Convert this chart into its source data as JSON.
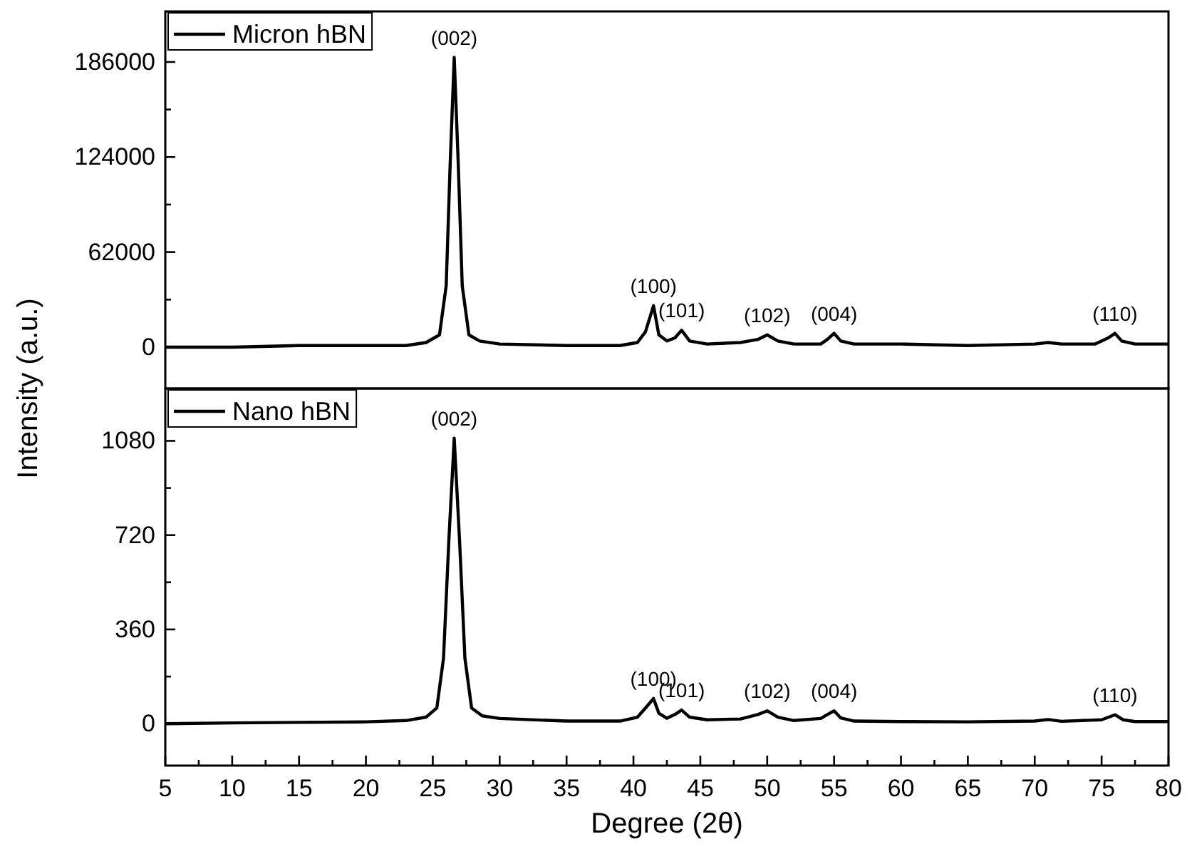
{
  "chart_data": [
    {
      "type": "line",
      "ylabel": "Intensity (a.u.)",
      "xlim": [
        5,
        80
      ],
      "ylim": [
        -27000,
        219000
      ],
      "yticks": [
        0,
        {
          "value": 31000,
          "label": null
        },
        62000,
        {
          "value": 93000,
          "label": null
        },
        124000,
        {
          "value": 155000,
          "label": null
        },
        186000
      ],
      "tick_labels": "y",
      "legend": "top left",
      "grid": false,
      "line_style": "solid",
      "marker": "none",
      "series": [
        {
          "name": "Micron hBN",
          "color": "#000000",
          "x": [
            5,
            10,
            15,
            20,
            23,
            24.5,
            25.5,
            26,
            26.3,
            26.6,
            26.9,
            27.2,
            27.7,
            28.5,
            30,
            35,
            39,
            40.3,
            40.9,
            41.5,
            41.9,
            42.5,
            43.1,
            43.6,
            44.2,
            45.5,
            48,
            49.3,
            50,
            50.8,
            52,
            54,
            54.5,
            55,
            55.5,
            56.5,
            60,
            65,
            70,
            71,
            72,
            74.5,
            75.5,
            76,
            76.5,
            77.5,
            80
          ],
          "values": [
            0,
            0,
            1000,
            1000,
            1000,
            3000,
            8000,
            40000,
            120000,
            189000,
            120000,
            40000,
            8000,
            4000,
            2000,
            1000,
            1000,
            3000,
            10000,
            27000,
            8000,
            4000,
            6000,
            11000,
            4000,
            2000,
            3000,
            5000,
            8000,
            4000,
            2000,
            2000,
            5000,
            9000,
            4000,
            2000,
            2000,
            1000,
            2000,
            3000,
            2000,
            2000,
            6000,
            9000,
            4000,
            2000,
            2000
          ]
        }
      ],
      "annotations": [
        {
          "text": "(002)",
          "x": 26.6,
          "y": 189000
        },
        {
          "text": "(100)",
          "x": 41.5,
          "y": 27000
        },
        {
          "text": "(101)",
          "x": 43.6,
          "y": 11000
        },
        {
          "text": "(102)",
          "x": 50,
          "y": 8000
        },
        {
          "text": "(004)",
          "x": 55,
          "y": 9000
        },
        {
          "text": "(110)",
          "x": 76,
          "y": 9000
        }
      ]
    },
    {
      "type": "line",
      "xlabel": "Degree (2θ)",
      "xlim": [
        5,
        80
      ],
      "xticks": [
        5,
        {
          "value": 7.5,
          "label": null
        },
        10,
        {
          "value": 12.5,
          "label": null
        },
        15,
        {
          "value": 17.5,
          "label": null
        },
        20,
        {
          "value": 22.5,
          "label": null
        },
        25,
        {
          "value": 27.5,
          "label": null
        },
        30,
        {
          "value": 32.5,
          "label": null
        },
        35,
        {
          "value": 37.5,
          "label": null
        },
        40,
        {
          "value": 42.5,
          "label": null
        },
        45,
        {
          "value": 47.5,
          "label": null
        },
        50,
        {
          "value": 52.5,
          "label": null
        },
        55,
        {
          "value": 57.5,
          "label": null
        },
        60,
        {
          "value": 62.5,
          "label": null
        },
        65,
        {
          "value": 67.5,
          "label": null
        },
        70,
        {
          "value": 72.5,
          "label": null
        },
        75,
        {
          "value": 77.5,
          "label": null
        },
        80
      ],
      "ylim": [
        -160,
        1280
      ],
      "yticks": [
        0,
        {
          "value": 180,
          "label": null
        },
        360,
        {
          "value": 540,
          "label": null
        },
        720,
        {
          "value": 900,
          "label": null
        },
        1080
      ],
      "legend": "top left",
      "grid": false,
      "line_style": "solid",
      "marker": "none",
      "series": [
        {
          "name": "Nano hBN",
          "color": "#000000",
          "x": [
            5,
            10,
            15,
            20,
            23,
            24.5,
            25.3,
            25.8,
            26.2,
            26.6,
            27,
            27.4,
            27.9,
            28.7,
            30,
            35,
            39,
            40.3,
            40.9,
            41.5,
            41.9,
            42.5,
            43.1,
            43.6,
            44.2,
            45.5,
            48,
            49.3,
            50,
            50.8,
            52,
            54,
            54.5,
            55,
            55.5,
            56.5,
            60,
            65,
            70,
            71,
            72,
            75,
            76,
            76.6,
            77.5,
            80
          ],
          "values": [
            0,
            3,
            5,
            7,
            12,
            25,
            60,
            250,
            700,
            1090,
            700,
            250,
            60,
            30,
            20,
            10,
            10,
            25,
            60,
            96,
            40,
            21,
            35,
            52,
            25,
            15,
            18,
            35,
            49,
            25,
            12,
            20,
            35,
            49,
            22,
            10,
            8,
            7,
            10,
            16,
            9,
            15,
            34,
            15,
            8,
            8
          ]
        }
      ],
      "annotations": [
        {
          "text": "(002)",
          "x": 26.6,
          "y": 1090
        },
        {
          "text": "(100)",
          "x": 41.5,
          "y": 96
        },
        {
          "text": "(101)",
          "x": 43.6,
          "y": 52
        },
        {
          "text": "(102)",
          "x": 50,
          "y": 49
        },
        {
          "text": "(004)",
          "x": 55,
          "y": 49
        },
        {
          "text": "(110)",
          "x": 76,
          "y": 34
        }
      ]
    }
  ]
}
